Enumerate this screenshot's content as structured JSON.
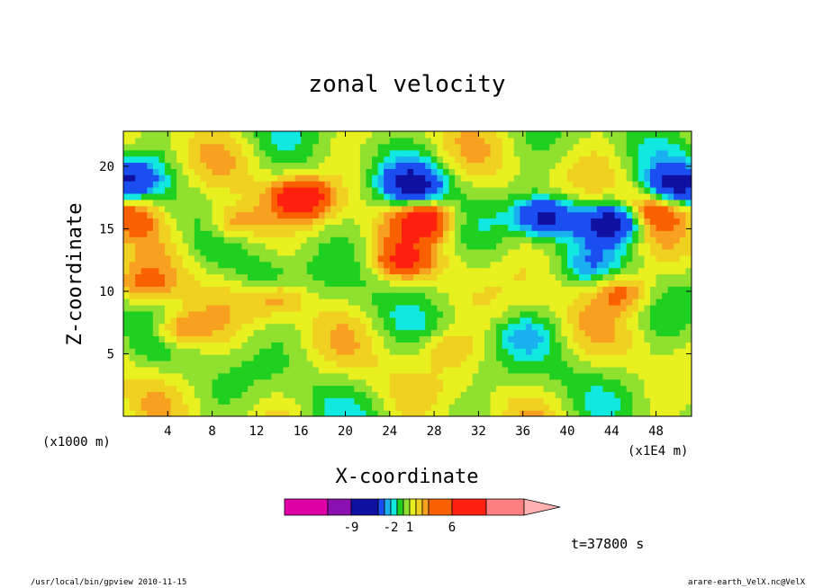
{
  "chart_data": {
    "type": "heatmap",
    "title": "zonal velocity",
    "xlabel": "X-coordinate",
    "ylabel": "Z-coordinate",
    "x_unit": "(x1E4 m)",
    "y_unit": "(x1000 m)",
    "xlim": [
      0,
      51.2
    ],
    "ylim": [
      0,
      22.8
    ],
    "xticks": [
      "4",
      "8",
      "12",
      "16",
      "20",
      "24",
      "28",
      "32",
      "36",
      "40",
      "44",
      "48"
    ],
    "yticks": [
      "5",
      "10",
      "15",
      "20"
    ],
    "grid": false,
    "colorbar": {
      "levels": [
        -12,
        -9,
        -6,
        -3,
        -2,
        -1,
        0,
        1,
        2,
        3,
        4,
        6,
        9,
        12
      ],
      "colors": [
        "#e000a8",
        "#8a10b0",
        "#1010a0",
        "#1a4ef0",
        "#1ab0f0",
        "#10e8e0",
        "#20d020",
        "#90e030",
        "#e8f020",
        "#f0d020",
        "#f8a020",
        "#f86000",
        "#ff2010",
        "#ff8080",
        "#ffb0b0"
      ],
      "labels": [
        "-9",
        "-2",
        "1",
        "6"
      ],
      "label_values": [
        -9,
        -2,
        1,
        6
      ]
    },
    "field_features": [
      {
        "x": 16,
        "z": 17.5,
        "value": 7
      },
      {
        "x": 27,
        "z": 15.8,
        "value": 7
      },
      {
        "x": 26,
        "z": 18.5,
        "value": -8
      },
      {
        "x": 38,
        "z": 16.0,
        "value": -8
      },
      {
        "x": 44,
        "z": 15.5,
        "value": -9
      },
      {
        "x": 50,
        "z": 18.5,
        "value": -8
      },
      {
        "x": 0.5,
        "z": 19,
        "value": -6
      },
      {
        "x": 0.5,
        "z": 16,
        "value": 5
      },
      {
        "x": 2,
        "z": 10.5,
        "value": 3
      },
      {
        "x": 10,
        "z": 15.5,
        "value": 4
      },
      {
        "x": 14,
        "z": 9.5,
        "value": 3
      },
      {
        "x": 13,
        "z": 11,
        "value": -2
      },
      {
        "x": 36,
        "z": 6.5,
        "value": -2
      },
      {
        "x": 29,
        "z": 5.5,
        "value": 2
      },
      {
        "x": 42,
        "z": 12,
        "value": -2
      },
      {
        "x": 48,
        "z": 16.5,
        "value": 4
      },
      {
        "x": 5,
        "z": 7,
        "value": 4
      },
      {
        "x": 25,
        "z": 12.5,
        "value": 4
      },
      {
        "x": 45,
        "z": 10,
        "value": 4
      }
    ]
  },
  "footer": {
    "time": "t=37800 s",
    "left": "/usr/local/bin/gpview  2010-11-15",
    "right": "arare-earth_VelX.nc@VelX"
  }
}
